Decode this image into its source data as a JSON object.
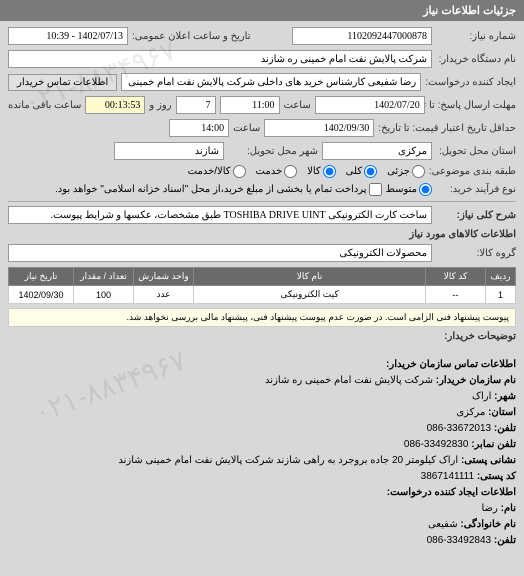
{
  "header": {
    "title": "جزئیات اطلاعات نیاز"
  },
  "form": {
    "request_no_label": "شماره نیاز:",
    "request_no": "1102092447000878",
    "datetime_label": "تاریخ و ساعت اعلان عمومی:",
    "datetime": "1402/07/13 - 10:39",
    "buyer_org_label": "نام دستگاه خریدار:",
    "buyer_org": "شرکت پالایش نفت امام خمینی ره شازند",
    "creator_label": "ایجاد کننده درخواست:",
    "creator": "رضا شفیعی کارشناس خرید های داخلی شرکت پالایش نفت امام خمینی ره",
    "contact_btn": "اطلاعات تماس خریدار",
    "deadline_label": "مهلت ارسال پاسخ: تا تاریخ:",
    "deadline_date": "1402/07/20",
    "deadline_time_label": "ساعت",
    "deadline_time": "11:00",
    "remain_days": "7",
    "remain_days_label": "روز و",
    "remain_time": "00:13:53",
    "remain_suffix": "ساعت باقی مانده",
    "validity_label": "حداقل تاریخ اعتبار قیمت: تا تاریخ:",
    "validity_date": "1402/09/30",
    "validity_time_label": "ساعت",
    "validity_time": "14:00",
    "delivery_state_label": "استان محل تحویل:",
    "delivery_state": "مرکزی",
    "delivery_city_label": "شهر محل تحویل:",
    "delivery_city": "شازند",
    "money_type_label": "طبقه بندی موضوعی:",
    "money_opt_partial": "جزئی",
    "money_opt_all": "کلی",
    "money_opt_kala": "کالا",
    "money_opt_khadamat": "خدمت",
    "money_opt_both": "کالا/خدمت",
    "buy_process_label": "نوع فرآیند خرید:",
    "buy_opt_mid": "متوسط",
    "buy_process_note": "پرداخت تمام یا بخشی از مبلغ خرید،از محل \"اسناد خزانه اسلامی\" خواهد بود.",
    "desc_label": "شرح کلی نیاز:",
    "desc": "ساخت کارت الکترونیکی TOSHIBA DRIVE UINT طبق مشخصات، عکسها و شرایط پیوست.",
    "goods_section": "اطلاعات کالاهای مورد نیاز",
    "group_label": "گروه کالا:",
    "group": "محصولات الکترونیکی"
  },
  "table": {
    "headers": [
      "ردیف",
      "کد کالا",
      "نام کالا",
      "واحد شمارش",
      "تعداد / مقدار",
      "تاریخ نیاز"
    ],
    "rows": [
      [
        "1",
        "--",
        "کیت الکترونیکی",
        "عدد",
        "100",
        "1402/09/30"
      ]
    ],
    "col_widths": [
      "30px",
      "60px",
      "auto",
      "60px",
      "60px",
      "65px"
    ]
  },
  "note": "پیوست پیشنهاد فنی الزامی است. در صورت عدم پیوست پیشنهاد فنی، پیشنهاد مالی بررسی نخواهد شد.",
  "remarks_label": "توضیحات خریدار:",
  "contact": {
    "section_title": "اطلاعات تماس سازمان خریدار:",
    "org_label": "نام سازمان خریدار:",
    "org": "شرکت پالایش نفت امام خمینی ره شازند",
    "city_label": "شهر:",
    "city": "اراک",
    "state_label": "استان:",
    "state": "مرکزی",
    "phone_label": "تلفن:",
    "phone": "33672013-086",
    "fax_label": "تلفن نمابر:",
    "fax": "33492830-086",
    "postal_label": "نشانی پستی:",
    "postal": "اراک کیلومتر 20 جاده بروجرد به راهی شازند شرکت پالایش نفت امام خمینی شازند",
    "postcode_label": "کد پستی:",
    "postcode": "3867141111",
    "requester_title": "اطلاعات ایجاد کننده درخواست:",
    "name_label": "نام:",
    "name": "رضا",
    "family_label": "نام خانوادگی:",
    "family": "شفیعی",
    "reqphone_label": "تلفن:",
    "reqphone": "33492843-086"
  },
  "watermark": "۰۲۱-۸۸۳۴۹۶۷"
}
